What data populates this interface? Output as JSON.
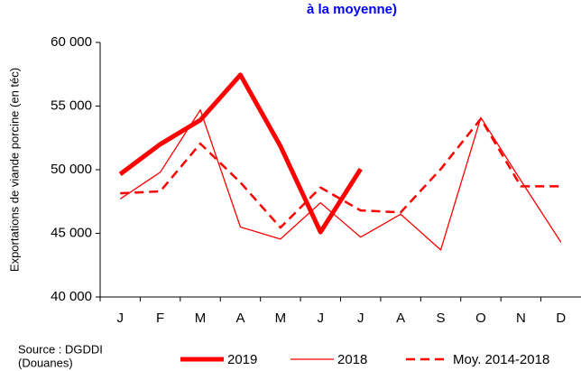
{
  "chart_data": {
    "type": "line",
    "title": "à la moyenne)",
    "y_label": "Exportations de viande porcine (en  téc)",
    "source": [
      "Source : DGDDI",
      "(Douanes)"
    ],
    "categories": [
      "J",
      "F",
      "M",
      "A",
      "M",
      "J",
      "J",
      "A",
      "S",
      "O",
      "N",
      "D"
    ],
    "ylim": [
      40000,
      60000
    ],
    "yticks": [
      {
        "value": 40000,
        "label": "40 000"
      },
      {
        "value": 45000,
        "label": "45 000"
      },
      {
        "value": 50000,
        "label": "50 000"
      },
      {
        "value": 55000,
        "label": "55 000"
      },
      {
        "value": 60000,
        "label": "60 000"
      }
    ],
    "series": [
      {
        "name": "2019",
        "color": "#ff0000",
        "width": 5,
        "dash": "none",
        "values": [
          49650,
          52000,
          53900,
          57450,
          51850,
          45100,
          50050,
          null,
          null,
          null,
          null,
          null
        ]
      },
      {
        "name": "2018",
        "color": "#ff0000",
        "width": 1.3,
        "dash": "none",
        "values": [
          47700,
          49800,
          54700,
          45500,
          44550,
          47400,
          44700,
          46500,
          43700,
          54100,
          49150,
          44300
        ]
      },
      {
        "name": "Moy. 2014-2018",
        "color": "#ff0000",
        "width": 2.5,
        "dash": "10,6",
        "values": [
          48150,
          48300,
          52050,
          49000,
          45450,
          48600,
          46800,
          46650,
          50050,
          54000,
          48700,
          48700
        ]
      }
    ]
  }
}
